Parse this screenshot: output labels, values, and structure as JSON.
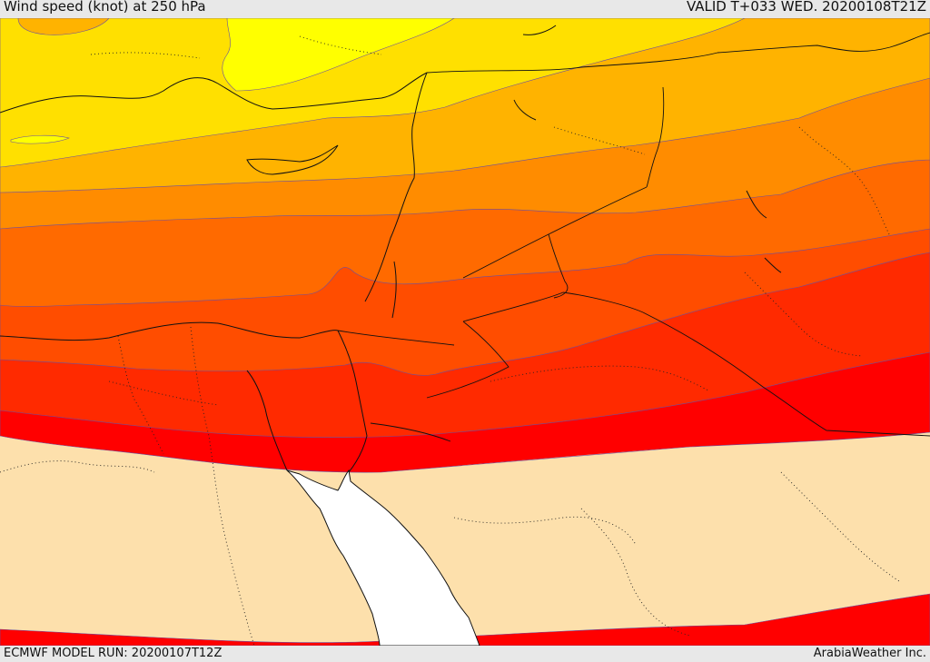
{
  "header": {
    "title": "Wind speed (knot) at 250 hPa",
    "valid": "VALID T+033 WED. 20200108T21Z"
  },
  "footer": {
    "model_run": "ECMWF MODEL RUN: 20200107T12Z",
    "credit": "ArabiaWeather Inc."
  },
  "map": {
    "bands": [
      {
        "name": "band-1",
        "color": "#ffff00"
      },
      {
        "name": "band-2",
        "color": "#ffe000"
      },
      {
        "name": "band-3",
        "color": "#ffb300"
      },
      {
        "name": "band-4",
        "color": "#ff8c00"
      },
      {
        "name": "band-5",
        "color": "#ff6a00"
      },
      {
        "name": "band-6",
        "color": "#ff4d00"
      },
      {
        "name": "band-7",
        "color": "#ff2a00"
      },
      {
        "name": "band-8",
        "color": "#ff0000"
      },
      {
        "name": "band-9",
        "color": "#fde0ac"
      }
    ],
    "sea_color": "#ffffff",
    "border_color": "#111111"
  }
}
